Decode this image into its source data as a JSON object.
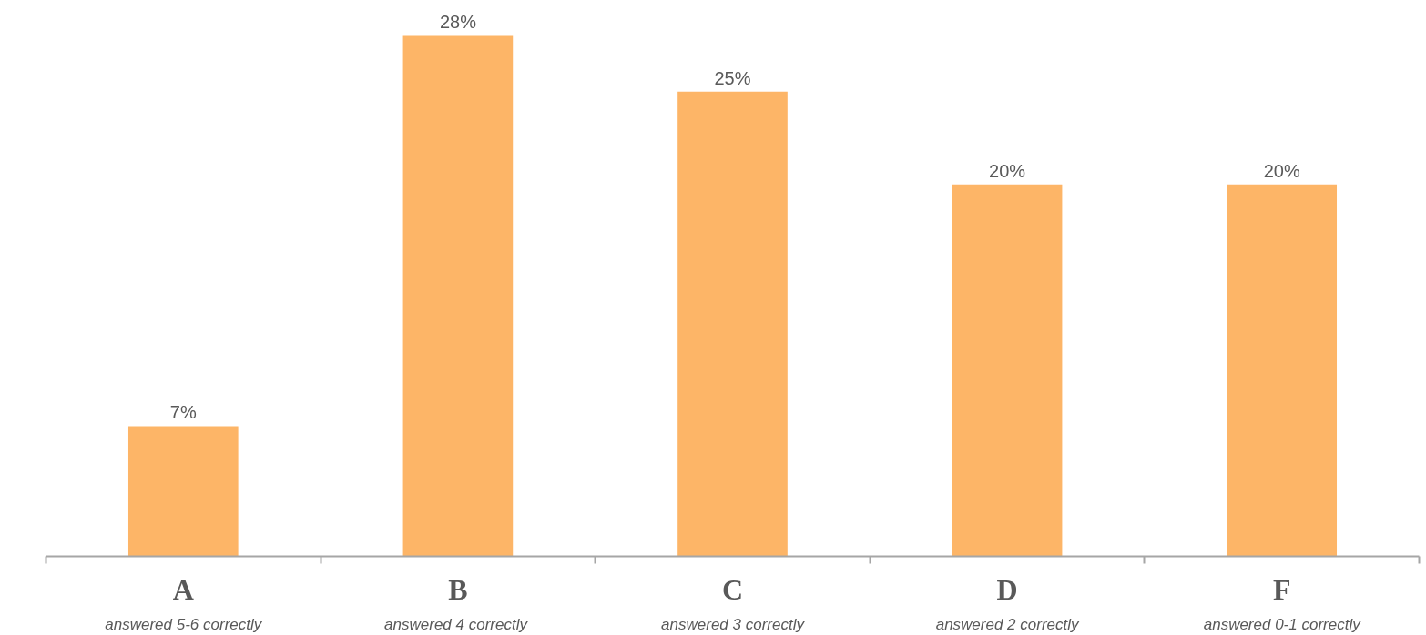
{
  "chart_data": {
    "type": "bar",
    "categories": [
      "A",
      "B",
      "C",
      "D",
      "F"
    ],
    "values": [
      7,
      28,
      25,
      20,
      20
    ],
    "color": "#fdb567",
    "data_labels": true,
    "value_labels": [
      "7%",
      "28%",
      "25%",
      "20%",
      "20%"
    ],
    "annotations": [
      "answered 5-6 correctly",
      "answered  4 correctly",
      "answered 3 correctly",
      "answered 2 correctly",
      "answered 0-1 correctly"
    ],
    "grid": false
  }
}
